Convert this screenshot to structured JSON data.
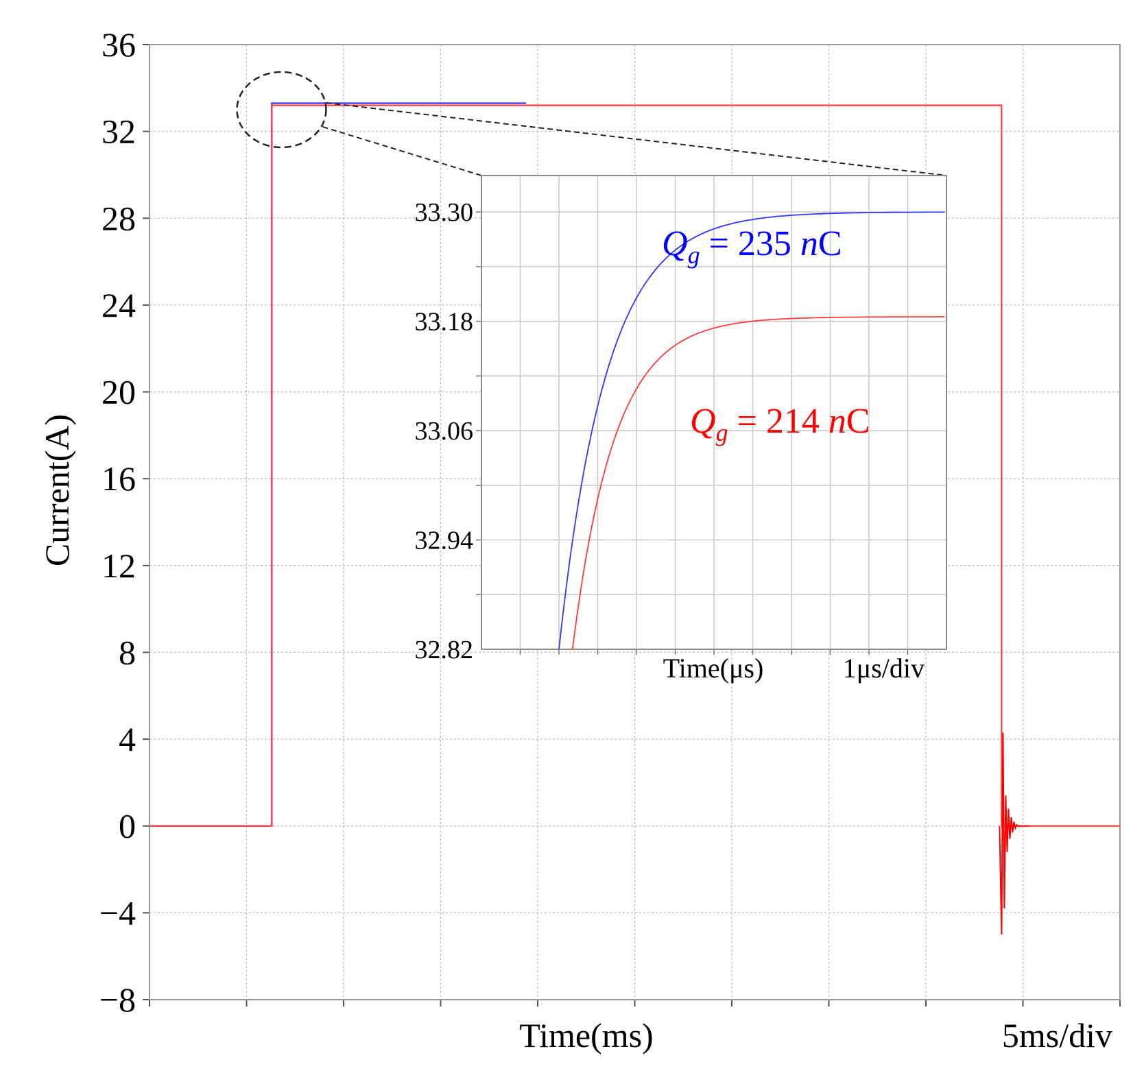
{
  "chart_data": [
    {
      "type": "line",
      "title": "",
      "xlabel": "Time(ms)",
      "x_scale_note": "5ms/div",
      "ylabel": "Current(A)",
      "ylim": [
        -8,
        36
      ],
      "yticks": [
        -8,
        -4,
        0,
        4,
        8,
        12,
        16,
        20,
        24,
        28,
        32,
        36
      ],
      "ytick_labels": [
        "−8",
        "−4",
        "0",
        "4",
        "8",
        "12",
        "16",
        "20",
        "24",
        "28",
        "32",
        "36"
      ],
      "xlim": [
        0,
        50
      ],
      "x_divisions": 10,
      "grid": true,
      "series": [
        {
          "name": "Qg = 235 nC",
          "color": "#3333ff",
          "points": [
            [
              0,
              0
            ],
            [
              6.3,
              0
            ],
            [
              6.3,
              33.3
            ],
            [
              19.4,
              33.3
            ]
          ]
        },
        {
          "name": "Qg = 214 nC",
          "color": "#ff3b3b",
          "points": [
            [
              0,
              0
            ],
            [
              6.3,
              0
            ],
            [
              6.3,
              33.2
            ],
            [
              43.9,
              33.2
            ],
            [
              43.9,
              0
            ],
            [
              50,
              0
            ]
          ]
        }
      ],
      "annotations": [
        {
          "type": "zoom-ellipse",
          "x": 6.8,
          "y": 33.0,
          "text": ""
        },
        {
          "type": "turn-off-ringing",
          "x": 43.9,
          "min": -5.0,
          "max": 4.3,
          "text": ""
        }
      ]
    },
    {
      "type": "line",
      "title": "",
      "xlabel": "Time(μs)",
      "x_scale_note": "1μs/div",
      "ylabel": "",
      "ylim": [
        32.82,
        33.34
      ],
      "yticks": [
        32.82,
        32.94,
        33.06,
        33.18,
        33.3
      ],
      "ytick_labels": [
        "32.82",
        "32.94",
        "33.06",
        "33.18",
        "33.30"
      ],
      "xlim": [
        0,
        12
      ],
      "grid": true,
      "series": [
        {
          "name": "Qg = 235 nC",
          "color": "#3333ff",
          "model": "exponential-rise",
          "t0": 2.0,
          "asymptote": 33.3,
          "tau": 1.23
        },
        {
          "name": "Qg = 214 nC",
          "color": "#ff3b3b",
          "model": "exponential-rise",
          "t0": 2.35,
          "asymptote": 33.185,
          "tau": 1.08
        }
      ],
      "legend": [
        {
          "base": "Q",
          "sub": "g",
          "rest": " = 235 ",
          "unit_italic": "n",
          "unit": "C",
          "color": "#0000ff"
        },
        {
          "base": "Q",
          "sub": "g",
          "rest": " = 214 ",
          "unit_italic": "n",
          "unit": "C",
          "color": "#ff0000"
        }
      ]
    }
  ]
}
